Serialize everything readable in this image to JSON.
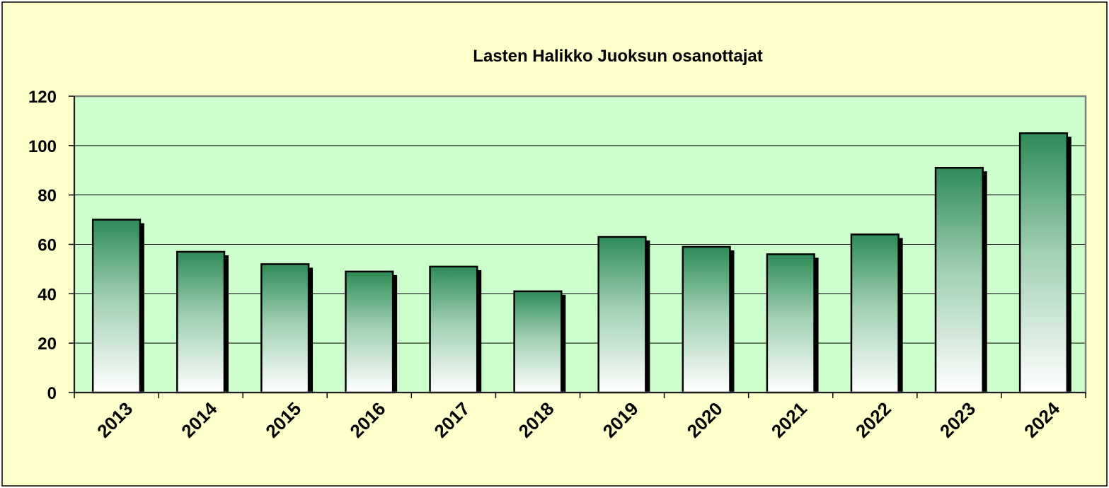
{
  "chart_data": {
    "type": "bar",
    "title": "Lasten Halikko Juoksun osanottajat",
    "xlabel": "",
    "ylabel": "",
    "categories": [
      "2013",
      "2014",
      "2015",
      "2016",
      "2017",
      "2018",
      "2019",
      "2020",
      "2021",
      "2022",
      "2023",
      "2024"
    ],
    "values": [
      70,
      57,
      52,
      49,
      51,
      41,
      63,
      59,
      56,
      64,
      91,
      105
    ],
    "ylim": [
      0,
      120
    ],
    "yticks": [
      "0",
      "20",
      "40",
      "60",
      "80",
      "100",
      "120"
    ],
    "grid": true,
    "legend": "none",
    "colors": {
      "page_background": "#ffffcc",
      "plot_background": "#ccffcc",
      "bar_top": "#2e8b57",
      "bar_bottom": "#ffffff",
      "bar_shadow": "#000000",
      "plot_border": "#808080"
    }
  }
}
